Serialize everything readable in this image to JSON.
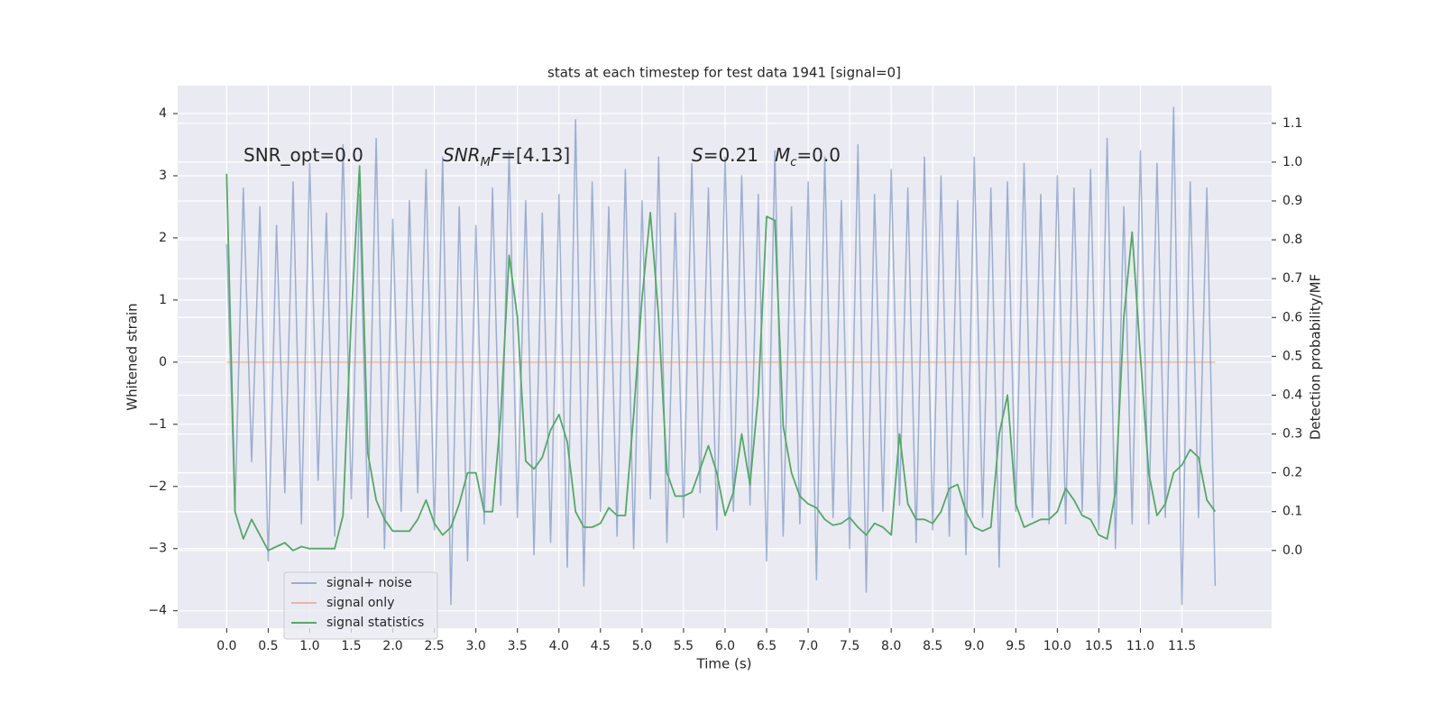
{
  "chart_data": {
    "type": "line",
    "title": "stats at each timestep for test data 1941 [signal=0]",
    "x_label": "Time (s)",
    "y_label": "Whitened strain",
    "y2_label": "Detection probability/MF",
    "annotations": [
      {
        "parts": [
          {
            "text": "SNR_opt=0.0"
          }
        ]
      },
      {
        "parts": [
          {
            "text": "SNR",
            "italic": true
          },
          {
            "text": "M",
            "italic": true,
            "sub": true
          },
          {
            "text": "F",
            "italic": true
          },
          {
            "text": "=[4.13]"
          }
        ]
      },
      {
        "parts": [
          {
            "text": "S",
            "italic": true
          },
          {
            "text": "=0.21"
          }
        ]
      },
      {
        "parts": [
          {
            "text": "M",
            "italic": true
          },
          {
            "text": "c",
            "italic": true,
            "sub": true
          },
          {
            "text": "=0.0"
          }
        ]
      }
    ],
    "x": [
      0.0,
      0.1,
      0.2,
      0.3,
      0.4,
      0.5,
      0.6,
      0.7,
      0.8,
      0.9,
      1.0,
      1.1,
      1.2,
      1.3,
      1.4,
      1.5,
      1.6,
      1.7,
      1.8,
      1.9,
      2.0,
      2.1,
      2.2,
      2.3,
      2.4,
      2.5,
      2.6,
      2.7,
      2.8,
      2.9,
      3.0,
      3.1,
      3.2,
      3.3,
      3.4,
      3.5,
      3.6,
      3.7,
      3.8,
      3.9,
      4.0,
      4.1,
      4.2,
      4.3,
      4.4,
      4.5,
      4.6,
      4.7,
      4.8,
      4.9,
      5.0,
      5.1,
      5.2,
      5.3,
      5.4,
      5.5,
      5.6,
      5.7,
      5.8,
      5.9,
      6.0,
      6.1,
      6.2,
      6.3,
      6.4,
      6.5,
      6.6,
      6.7,
      6.8,
      6.9,
      7.0,
      7.1,
      7.2,
      7.3,
      7.4,
      7.5,
      7.6,
      7.7,
      7.8,
      7.9,
      8.0,
      8.1,
      8.2,
      8.3,
      8.4,
      8.5,
      8.6,
      8.7,
      8.8,
      8.9,
      9.0,
      9.1,
      9.2,
      9.3,
      9.4,
      9.5,
      9.6,
      9.7,
      9.8,
      9.9,
      10.0,
      10.1,
      10.2,
      10.3,
      10.4,
      10.5,
      10.6,
      10.7,
      10.8,
      10.9,
      11.0,
      11.1,
      11.2,
      11.3,
      11.4,
      11.5,
      11.6,
      11.7,
      11.8,
      11.9
    ],
    "series": [
      {
        "name": "signal+ noise",
        "color": "#4c72b0",
        "opacity": 0.5,
        "values": [
          1.9,
          -2.4,
          2.8,
          -1.6,
          2.5,
          -3.2,
          2.2,
          -2.1,
          2.9,
          -2.6,
          3.2,
          -1.9,
          2.4,
          -2.8,
          3.5,
          -2.2,
          2.7,
          -2.5,
          3.6,
          -3.0,
          2.3,
          -2.4,
          2.6,
          -2.1,
          3.1,
          -2.7,
          3.3,
          -3.9,
          2.5,
          -3.2,
          2.2,
          -2.6,
          2.8,
          -2.3,
          3.4,
          -2.5,
          2.6,
          -3.1,
          2.4,
          -2.9,
          2.7,
          -3.3,
          3.9,
          -3.6,
          2.9,
          -2.4,
          2.5,
          -2.8,
          3.1,
          -3.0,
          2.6,
          -2.2,
          3.3,
          -2.9,
          2.4,
          -2.5,
          3.2,
          -2.1,
          2.8,
          -2.7,
          3.3,
          -2.4,
          3.0,
          -2.3,
          2.7,
          -3.2,
          3.4,
          -2.8,
          2.5,
          -2.6,
          2.9,
          -3.5,
          3.3,
          -2.5,
          2.6,
          -3.0,
          3.5,
          -3.7,
          2.7,
          -2.4,
          3.1,
          -2.3,
          2.8,
          -2.9,
          3.3,
          -2.7,
          3.0,
          -2.8,
          2.6,
          -3.1,
          3.3,
          -2.5,
          2.8,
          -3.3,
          2.9,
          -2.4,
          3.2,
          -2.5,
          2.7,
          -2.6,
          3.0,
          -2.6,
          2.8,
          -2.4,
          3.1,
          -2.7,
          3.6,
          -3.0,
          2.5,
          -2.6,
          3.4,
          -2.6,
          3.2,
          -2.5,
          4.1,
          -3.9,
          2.9,
          -2.5,
          2.8,
          -3.6
        ]
      },
      {
        "name": "signal only",
        "color": "#dd8452",
        "opacity": 0.5,
        "x": [
          0.0,
          11.9
        ],
        "values": [
          0,
          0
        ]
      },
      {
        "name": "signal statistics",
        "color": "#55a868",
        "opacity": 1,
        "axis": "y2",
        "values": [
          0.97,
          0.1,
          0.03,
          0.08,
          0.04,
          0.0,
          0.01,
          0.02,
          0.0,
          0.01,
          0.005,
          0.005,
          0.005,
          0.005,
          0.09,
          0.6,
          0.99,
          0.25,
          0.13,
          0.08,
          0.05,
          0.05,
          0.05,
          0.08,
          0.13,
          0.07,
          0.04,
          0.06,
          0.12,
          0.2,
          0.2,
          0.1,
          0.1,
          0.35,
          0.76,
          0.6,
          0.23,
          0.21,
          0.24,
          0.31,
          0.35,
          0.28,
          0.1,
          0.06,
          0.06,
          0.07,
          0.11,
          0.09,
          0.09,
          0.35,
          0.65,
          0.87,
          0.6,
          0.2,
          0.14,
          0.14,
          0.15,
          0.21,
          0.27,
          0.2,
          0.09,
          0.15,
          0.3,
          0.17,
          0.4,
          0.86,
          0.85,
          0.32,
          0.2,
          0.14,
          0.12,
          0.11,
          0.08,
          0.065,
          0.07,
          0.085,
          0.06,
          0.04,
          0.07,
          0.06,
          0.04,
          0.3,
          0.12,
          0.08,
          0.08,
          0.07,
          0.1,
          0.16,
          0.17,
          0.1,
          0.06,
          0.05,
          0.06,
          0.3,
          0.4,
          0.12,
          0.06,
          0.07,
          0.08,
          0.08,
          0.1,
          0.16,
          0.13,
          0.09,
          0.08,
          0.04,
          0.03,
          0.15,
          0.6,
          0.82,
          0.5,
          0.2,
          0.09,
          0.12,
          0.2,
          0.22,
          0.26,
          0.24,
          0.13,
          0.1
        ]
      }
    ],
    "xlim": [
      -0.59,
      12.58
    ],
    "xticks": [
      {
        "value": 0,
        "label": "0.0"
      },
      {
        "value": 0.5,
        "label": "0.5"
      },
      {
        "value": 1,
        "label": "1.0"
      },
      {
        "value": 1.5,
        "label": "1.5"
      },
      {
        "value": 2,
        "label": "2.0"
      },
      {
        "value": 2.5,
        "label": "2.5"
      },
      {
        "value": 3,
        "label": "3.0"
      },
      {
        "value": 3.5,
        "label": "3.5"
      },
      {
        "value": 4,
        "label": "4.0"
      },
      {
        "value": 4.5,
        "label": "4.5"
      },
      {
        "value": 5,
        "label": "5.0"
      },
      {
        "value": 5.5,
        "label": "5.5"
      },
      {
        "value": 6,
        "label": "6.0"
      },
      {
        "value": 6.5,
        "label": "6.5"
      },
      {
        "value": 7,
        "label": "7.0"
      },
      {
        "value": 7.5,
        "label": "7.5"
      },
      {
        "value": 8,
        "label": "8.0"
      },
      {
        "value": 8.5,
        "label": "8.5"
      },
      {
        "value": 9,
        "label": "9.0"
      },
      {
        "value": 9.5,
        "label": "9.5"
      },
      {
        "value": 10,
        "label": "10.0"
      },
      {
        "value": 10.5,
        "label": "10.5"
      },
      {
        "value": 11,
        "label": "11.0"
      },
      {
        "value": 11.5,
        "label": "11.5"
      }
    ],
    "ylim": [
      -4.28,
      4.45
    ],
    "yticks": [
      {
        "value": -4,
        "label": "−4"
      },
      {
        "value": -3,
        "label": "−3"
      },
      {
        "value": -2,
        "label": "−2"
      },
      {
        "value": -1,
        "label": "−1"
      },
      0,
      1,
      2,
      3,
      4
    ],
    "y2lim": [
      -0.2,
      1.197
    ],
    "y2ticks": [
      {
        "value": 0,
        "label": "0.0"
      },
      {
        "value": 0.1,
        "label": "0.1"
      },
      {
        "value": 0.2,
        "label": "0.2"
      },
      {
        "value": 0.3,
        "label": "0.3"
      },
      {
        "value": 0.4,
        "label": "0.4"
      },
      {
        "value": 0.5,
        "label": "0.5"
      },
      {
        "value": 0.6,
        "label": "0.6"
      },
      {
        "value": 0.7,
        "label": "0.7"
      },
      {
        "value": 0.8,
        "label": "0.8"
      },
      {
        "value": 0.9,
        "label": "0.9"
      },
      {
        "value": 1,
        "label": "1.0"
      },
      {
        "value": 1.1,
        "label": "1.1"
      }
    ],
    "grid": true,
    "legend": "lower left"
  }
}
